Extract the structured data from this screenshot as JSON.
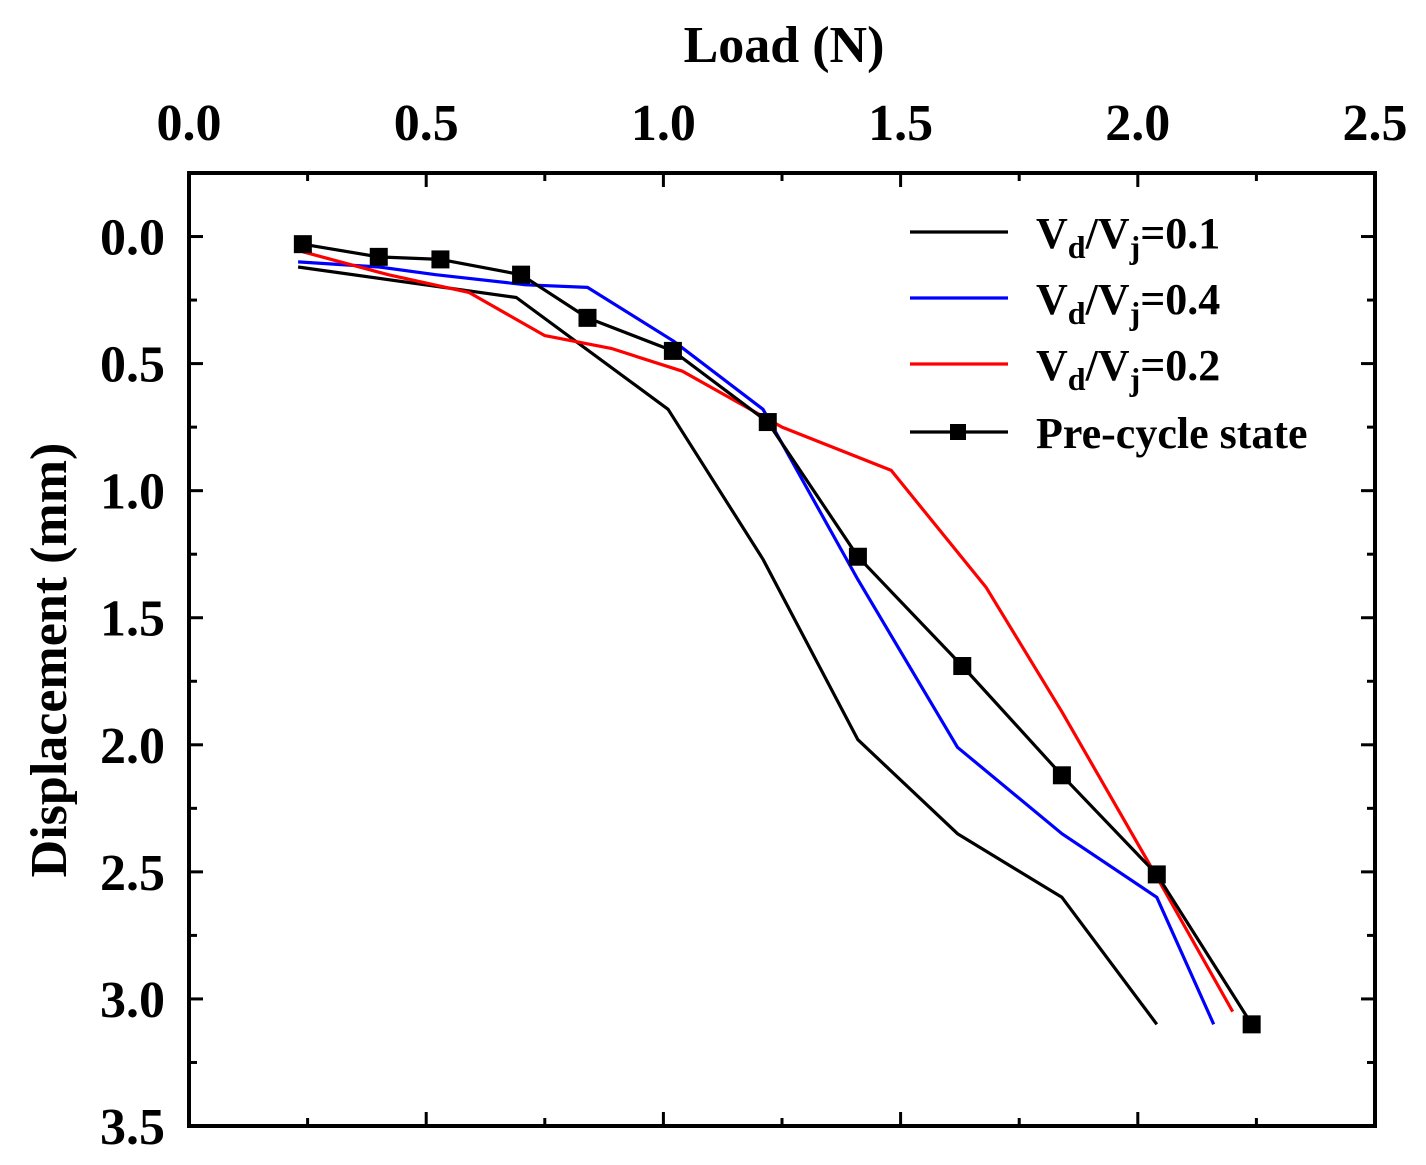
{
  "chart_data": {
    "type": "line",
    "xlabel": "Load (N)",
    "ylabel": "Displacement (mm)",
    "xlim": [
      0,
      2.5
    ],
    "ylim": [
      -0.25,
      3.5
    ],
    "y_inverted": true,
    "x_axis_position": "top",
    "x_ticks": [
      0.0,
      0.5,
      1.0,
      1.5,
      2.0,
      2.5
    ],
    "x_tick_labels": [
      "0.0",
      "0.5",
      "1.0",
      "1.5",
      "2.0",
      "2.5"
    ],
    "y_ticks": [
      0.0,
      0.5,
      1.0,
      1.5,
      2.0,
      2.5,
      3.0,
      3.5
    ],
    "y_tick_labels": [
      "0.0",
      "0.5",
      "1.0",
      "1.5",
      "2.0",
      "2.5",
      "3.0",
      "3.5"
    ],
    "legend_position": "top-right",
    "series": [
      {
        "name": "Vd/Vj=0.1",
        "legend_main_1": "V",
        "legend_sub_1": "d",
        "legend_mid": "/V",
        "legend_sub_2": "j",
        "legend_tail": "=0.1",
        "color": "#000000",
        "marker": "none",
        "x": [
          0.23,
          0.69,
          1.01,
          1.21,
          1.41,
          1.62,
          1.84,
          2.04
        ],
        "y": [
          0.12,
          0.24,
          0.68,
          1.27,
          1.98,
          2.35,
          2.6,
          3.1
        ]
      },
      {
        "name": "Vd/Vj=0.4",
        "legend_main_1": "V",
        "legend_sub_1": "d",
        "legend_mid": "/V",
        "legend_sub_2": "j",
        "legend_tail": "=0.4",
        "color": "#0000ff",
        "marker": "none",
        "x": [
          0.23,
          0.4,
          0.52,
          0.71,
          0.84,
          1.02,
          1.21,
          1.41,
          1.62,
          1.84,
          2.04,
          2.16
        ],
        "y": [
          0.1,
          0.12,
          0.15,
          0.19,
          0.2,
          0.41,
          0.68,
          1.35,
          2.01,
          2.35,
          2.6,
          3.1
        ]
      },
      {
        "name": "Vd/Vj=0.2",
        "legend_main_1": "V",
        "legend_sub_1": "d",
        "legend_mid": "/V",
        "legend_sub_2": "j",
        "legend_tail": "=0.2",
        "color": "#ff0000",
        "marker": "none",
        "x": [
          0.24,
          0.42,
          0.59,
          0.75,
          0.89,
          1.04,
          1.25,
          1.48,
          1.68,
          1.84,
          2.04,
          2.2
        ],
        "y": [
          0.06,
          0.15,
          0.22,
          0.39,
          0.44,
          0.53,
          0.75,
          0.92,
          1.38,
          1.87,
          2.52,
          3.05
        ]
      },
      {
        "name": "Pre-cycle state",
        "legend_label": "Pre-cycle state",
        "color": "#000000",
        "marker": "square",
        "x": [
          0.24,
          0.4,
          0.53,
          0.7,
          0.84,
          1.02,
          1.22,
          1.41,
          1.63,
          1.84,
          2.04,
          2.24
        ],
        "y": [
          0.03,
          0.08,
          0.09,
          0.15,
          0.32,
          0.45,
          0.73,
          1.26,
          1.69,
          2.12,
          2.51,
          3.1
        ]
      }
    ]
  }
}
